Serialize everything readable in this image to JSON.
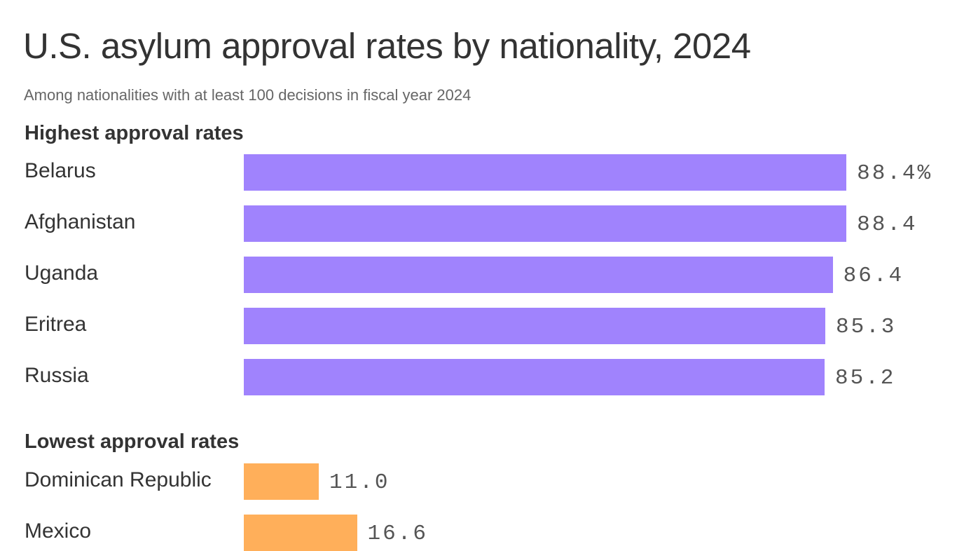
{
  "title": "U.S. asylum approval rates by nationality, 2024",
  "subtitle": "Among nationalities with at least 100 decisions in fiscal year 2024",
  "colors": {
    "highest": "#a083fd",
    "lowest": "#ffaf5a"
  },
  "chart_data": {
    "type": "bar",
    "orientation": "horizontal",
    "unit": "%",
    "xlim": [
      0,
      100
    ],
    "groups": [
      {
        "name": "Highest approval rates",
        "color": "#a083fd",
        "categories": [
          "Belarus",
          "Afghanistan",
          "Uganda",
          "Eritrea",
          "Russia"
        ],
        "values": [
          88.4,
          88.4,
          86.4,
          85.3,
          85.2
        ],
        "labels": [
          "88.4%",
          "88.4",
          "86.4",
          "85.3",
          "85.2"
        ]
      },
      {
        "name": "Lowest approval rates",
        "color": "#ffaf5a",
        "categories": [
          "Dominican Republic",
          "Mexico"
        ],
        "values": [
          11.0,
          16.6
        ],
        "labels": [
          "11.0",
          "16.6"
        ]
      }
    ]
  }
}
